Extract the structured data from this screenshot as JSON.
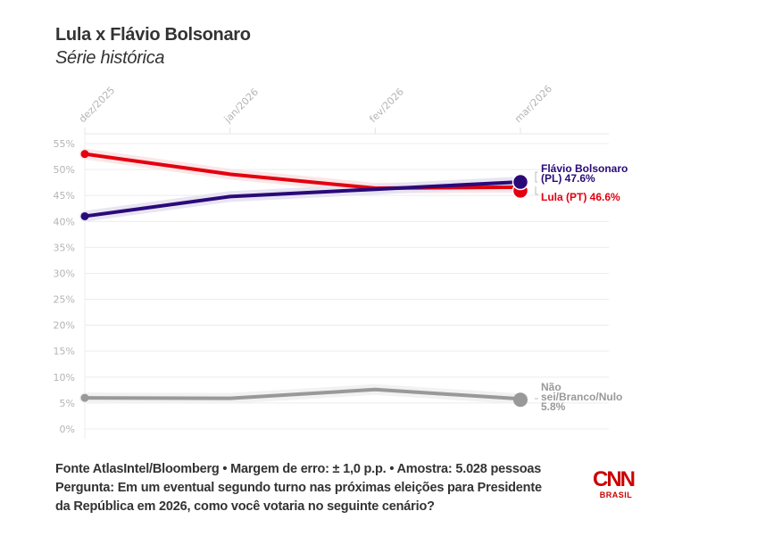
{
  "header": {
    "title": "Lula x Flávio Bolsonaro",
    "subtitle": "Série histórica"
  },
  "chart_data": {
    "type": "line",
    "title": "Lula x Flávio Bolsonaro",
    "subtitle": "Série histórica",
    "xlabel": "",
    "ylabel": "",
    "x": [
      "dez/2025",
      "jan/2026",
      "fev/2026",
      "mar/2026"
    ],
    "ylim": [
      0,
      55
    ],
    "yticks": [
      0,
      5,
      10,
      15,
      20,
      25,
      30,
      35,
      40,
      45,
      50,
      55
    ],
    "ytick_labels": [
      "0%",
      "5%",
      "10%",
      "15%",
      "20%",
      "25%",
      "30%",
      "35%",
      "40%",
      "45%",
      "50%",
      "55%"
    ],
    "grid": true,
    "series": [
      {
        "name": "Lula (PT)",
        "color": "#e3000f",
        "band_color": "#fbe3e4",
        "values": [
          53.0,
          49.1,
          46.4,
          46.6
        ],
        "end_label": [
          "Lula (PT) 46.6%"
        ]
      },
      {
        "name": "Flávio Bolsonaro (PL)",
        "color": "#2a0a78",
        "band_color": "#e6e2f2",
        "values": [
          41.0,
          44.8,
          46.2,
          47.6
        ],
        "end_label": [
          "Flávio Bolsonaro",
          "(PL) 47.6%"
        ]
      },
      {
        "name": "Não sei/Branco/Nulo",
        "color": "#999999",
        "band_color": "#f1f1f1",
        "values": [
          6.0,
          5.9,
          7.6,
          5.8
        ],
        "end_label": [
          "Não",
          "sei/Branco/Nulo",
          "5.8%"
        ]
      }
    ]
  },
  "footer": {
    "line1": "Fonte AtlasIntel/Bloomberg • Margem de erro: ± 1,0 p.p. • Amostra: 5.028 pessoas",
    "line2": "Pergunta: Em um eventual segundo turno nas próximas eleições para Presidente",
    "line3": "da República em 2026, como você votaria no seguinte cenário?"
  },
  "logo": {
    "brand": "CNN",
    "sub": "BRASIL",
    "color": "#cc0000"
  }
}
